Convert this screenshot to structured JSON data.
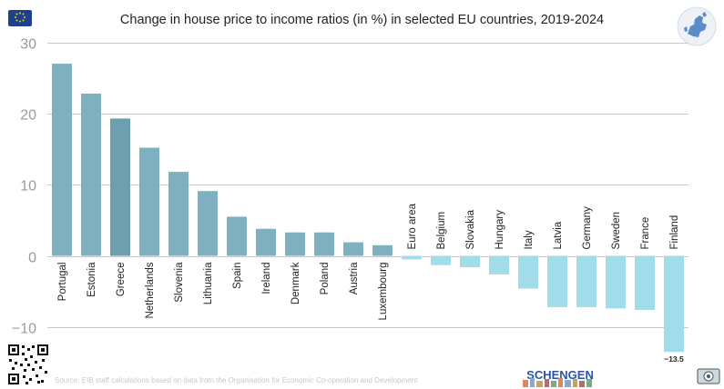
{
  "title": "Change in house price to income ratios (in %) in selected EU countries, 2019-2024",
  "source": "Source: EIB staff calculations based on data from the Organisation for Economic Co-operation and Development",
  "logo_text": "SCHENGEN",
  "colors": {
    "positive_bar": "#7fb0bf",
    "highlight_bar": "#6e9fae",
    "negative_bar": "#a2dbea",
    "grid": "#c8c8c8",
    "axis_text": "#9a9a9a",
    "flag_blue": "#1f3f8f",
    "flag_star": "#f2d000"
  },
  "icons": [
    "eu-flag-icon",
    "eu-map-icon",
    "qr-code-icon",
    "schengen-logo",
    "money-icon"
  ],
  "chart_data": {
    "type": "bar",
    "categories": [
      "Portugal",
      "Estonia",
      "Greece",
      "Netherlands",
      "Slovenia",
      "Lithuania",
      "Spain",
      "Ireland",
      "Denmark",
      "Poland",
      "Austria",
      "Luxembourg",
      "Euro area",
      "Belgium",
      "Slovakia",
      "Hungary",
      "Italy",
      "Latvia",
      "Germany",
      "Sweden",
      "France",
      "Finland"
    ],
    "values": [
      27.0,
      22.8,
      19.3,
      15.2,
      11.8,
      9.1,
      5.5,
      3.8,
      3.3,
      3.3,
      1.9,
      1.5,
      -0.5,
      -1.3,
      -1.6,
      -2.6,
      -4.6,
      -7.2,
      -7.2,
      -7.4,
      -7.6,
      -13.5
    ],
    "highlight": [
      "Greece"
    ],
    "data_labels": [
      {
        "category": "Finland",
        "text": "−13.5"
      }
    ],
    "ylim": [
      -13.5,
      30
    ],
    "yticks": [
      30,
      20,
      10,
      0,
      -10
    ],
    "ytick_labels": [
      "30",
      "20",
      "10",
      "0",
      "−10"
    ],
    "grid": true,
    "xlabel": "",
    "ylabel": ""
  }
}
